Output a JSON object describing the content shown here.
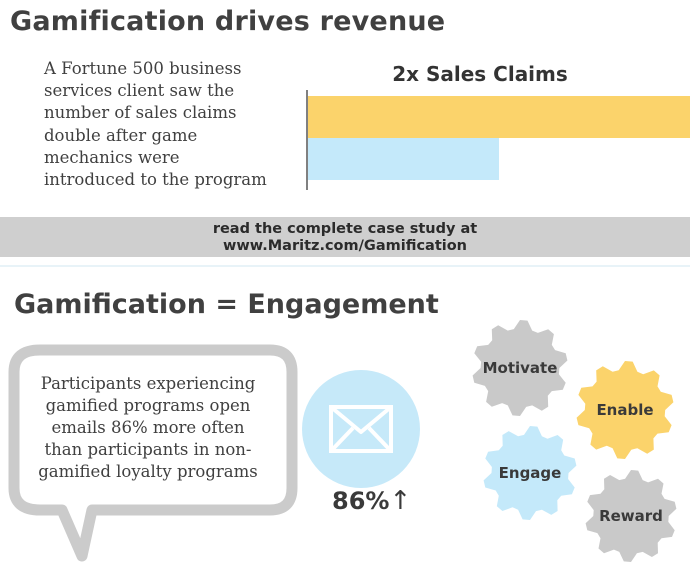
{
  "section1": {
    "title": "Gamification drives revenue",
    "claim_lines": [
      "A Fortune 500 business",
      "services client saw the",
      "number of sales claims",
      "double after game",
      "mechanics were",
      "introduced to the program"
    ]
  },
  "chart_data": {
    "type": "bar",
    "orientation": "horizontal",
    "title": "2x Sales Claims",
    "categories": [
      "",
      ""
    ],
    "values": [
      2,
      1
    ],
    "xlabel": "",
    "ylabel": "",
    "xlim": [
      0,
      2
    ],
    "grid": false,
    "colors": [
      "#fbd36b",
      "#c4e9fa"
    ]
  },
  "banner": {
    "line1": "read the complete case study at",
    "line2": "www.Maritz.com/Gamification"
  },
  "section2": {
    "title": "Gamification = Engagement",
    "bubble_lines": [
      "Participants experiencing",
      "gamified programs open",
      "emails 86% more often",
      "than participants in non-",
      "gamified loyalty programs"
    ],
    "stat_value": "86%",
    "stat_arrow": "↑",
    "icon": "envelope-icon",
    "gears": [
      {
        "label": "Motivate",
        "color": "#c9c9c9"
      },
      {
        "label": "Enable",
        "color": "#fbd36b"
      },
      {
        "label": "Engage",
        "color": "#c4e9fa"
      },
      {
        "label": "Reward",
        "color": "#c9c9c9"
      }
    ]
  }
}
